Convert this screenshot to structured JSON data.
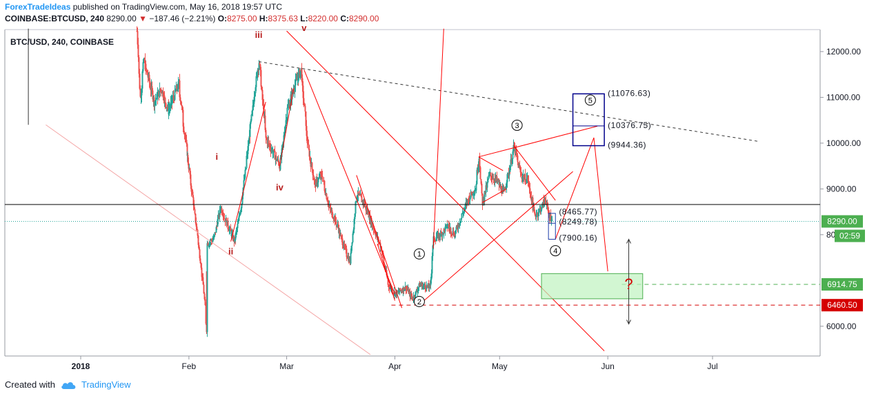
{
  "header": {
    "author": "ForexTradeIdeas",
    "published": "published on TradingView.com, May 16, 2018 19:57 UTC",
    "symbol": "COINBASE:BTCUSD, 240",
    "last": "8290.00",
    "change": "−187.46 (−2.21%)",
    "o_label": "O:",
    "o": "8275.00",
    "h_label": "H:",
    "h": "8375.63",
    "l_label": "L:",
    "l": "8220.00",
    "c_label": "C:",
    "c": "8290.00"
  },
  "footer": {
    "created_with": "Created with",
    "brand": "TradingView"
  },
  "colors": {
    "up": "#26a69a",
    "down": "#ef5350",
    "wave": "#ff0000",
    "wave_label": "#b71c1c",
    "target_box": "#00008b",
    "support": "#d50000",
    "price_tag": "#4caf50"
  },
  "chart_data": {
    "type": "candlestick",
    "title": "BTC/USD, 240, COINBASE",
    "x_ticks": [
      "2018",
      "Feb",
      "Mar",
      "Apr",
      "May",
      "Jun",
      "Jul"
    ],
    "y_ticks": [
      "12000.00",
      "11000.00",
      "10000.00",
      "9000.00",
      "8000.00",
      "6000.00"
    ],
    "ylim": [
      5350,
      12480
    ],
    "price_path": [
      [
        "2018-01-17",
        9300
      ],
      [
        "2018-01-17",
        12450
      ],
      [
        "2018-01-18",
        11000
      ],
      [
        "2018-01-19",
        11800
      ],
      [
        "2018-01-22",
        10900
      ],
      [
        "2018-01-24",
        11200
      ],
      [
        "2018-01-26",
        10700
      ],
      [
        "2018-01-29",
        11300
      ],
      [
        "2018-01-31",
        10000
      ],
      [
        "2018-02-02",
        8800
      ],
      [
        "2018-02-03",
        8200
      ],
      [
        "2018-02-05",
        6900
      ],
      [
        "2018-02-06",
        5920
      ],
      [
        "2018-02-06",
        7800
      ],
      [
        "2018-02-08",
        7900
      ],
      [
        "2018-02-10",
        8600
      ],
      [
        "2018-02-12",
        8200
      ],
      [
        "2018-02-14",
        7850
      ],
      [
        "2018-02-16",
        8700
      ],
      [
        "2018-02-18",
        10000
      ],
      [
        "2018-02-20",
        11300
      ],
      [
        "2018-02-21",
        11780
      ],
      [
        "2018-02-23",
        10100
      ],
      [
        "2018-02-25",
        9800
      ],
      [
        "2018-02-27",
        9500
      ],
      [
        "2018-03-01",
        10700
      ],
      [
        "2018-03-03",
        11200
      ],
      [
        "2018-03-05",
        11600
      ],
      [
        "2018-03-07",
        9900
      ],
      [
        "2018-03-09",
        9100
      ],
      [
        "2018-03-11",
        9300
      ],
      [
        "2018-03-13",
        8600
      ],
      [
        "2018-03-15",
        8300
      ],
      [
        "2018-03-17",
        7800
      ],
      [
        "2018-03-19",
        7400
      ],
      [
        "2018-03-21",
        8900
      ],
      [
        "2018-03-23",
        8700
      ],
      [
        "2018-03-26",
        8100
      ],
      [
        "2018-03-28",
        7700
      ],
      [
        "2018-03-30",
        6900
      ],
      [
        "2018-04-01",
        6700
      ],
      [
        "2018-04-04",
        6850
      ],
      [
        "2018-04-06",
        6600
      ],
      [
        "2018-04-08",
        6900
      ],
      [
        "2018-04-11",
        6850
      ],
      [
        "2018-04-12",
        7900
      ],
      [
        "2018-04-14",
        8000
      ],
      [
        "2018-04-16",
        8200
      ],
      [
        "2018-04-18",
        8000
      ],
      [
        "2018-04-20",
        8400
      ],
      [
        "2018-04-22",
        8800
      ],
      [
        "2018-04-24",
        9000
      ],
      [
        "2018-04-25",
        9700
      ],
      [
        "2018-04-26",
        8700
      ],
      [
        "2018-04-28",
        9300
      ],
      [
        "2018-04-30",
        9200
      ],
      [
        "2018-05-02",
        8900
      ],
      [
        "2018-05-04",
        9500
      ],
      [
        "2018-05-05",
        9950
      ],
      [
        "2018-05-07",
        9300
      ],
      [
        "2018-05-09",
        9200
      ],
      [
        "2018-05-11",
        8400
      ],
      [
        "2018-05-13",
        8600
      ],
      [
        "2018-05-14",
        8800
      ],
      [
        "2018-05-15",
        8450
      ],
      [
        "2018-05-16",
        8290
      ]
    ],
    "wave_labels": [
      {
        "label": "iii",
        "x": "2018-02-21",
        "y": 12300
      },
      {
        "label": "v",
        "x": "2018-03-06",
        "y": 12450
      },
      {
        "label": "i",
        "x": "2018-02-09",
        "y": 9640
      },
      {
        "label": "iv",
        "x": "2018-02-27",
        "y": 8970
      },
      {
        "label": "ii",
        "x": "2018-02-13",
        "y": 7570
      },
      {
        "label": "1",
        "x": "2018-04-08",
        "y": 7520
      },
      {
        "label": "2",
        "x": "2018-04-08",
        "y": 6480
      },
      {
        "label": "3",
        "x": "2018-05-06",
        "y": 10330
      },
      {
        "label": "4",
        "x": "2018-05-17",
        "y": 7590
      },
      {
        "label": "5",
        "x": "2018-05-27",
        "y": 10880
      }
    ],
    "annotations": [
      "(11076.63)",
      "(10376.75)",
      "(9944.36)",
      "(8465.77)",
      "(8249.78)",
      "(7900.16)",
      "?"
    ],
    "levels": [
      {
        "value": "8290.00",
        "kind": "last_price"
      },
      {
        "value": "02:59",
        "kind": "countdown"
      },
      {
        "value": "6914.75",
        "kind": "target"
      },
      {
        "value": "6460.50",
        "kind": "support"
      }
    ]
  }
}
